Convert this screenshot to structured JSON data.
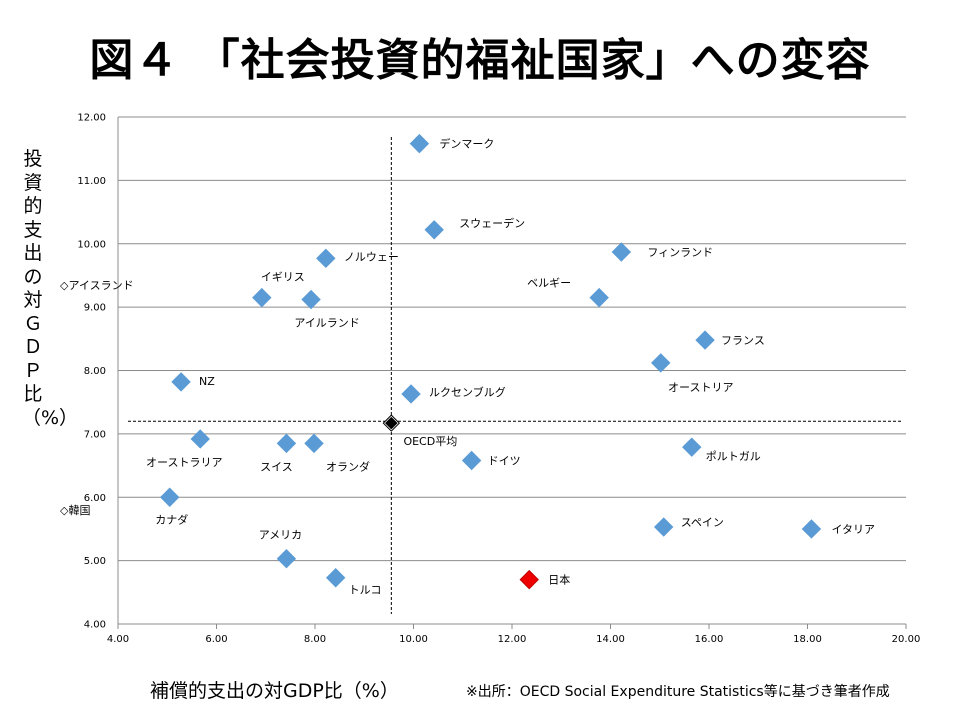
{
  "title": "図４ 「社会投資的福祉国家」への変容",
  "source": "※出所：OECD Social Expenditure Statistics等に基づき筆者作成",
  "chart_data": {
    "type": "scatter",
    "xlabel": "補償的支出の対GDP比（%）",
    "ylabel": "投資的支出の対ＧＤＰ比（%）",
    "xlim": [
      4.0,
      20.0
    ],
    "ylim": [
      4.0,
      12.0
    ],
    "x_ticks": [
      "4.00",
      "6.00",
      "8.00",
      "10.00",
      "12.00",
      "14.00",
      "16.00",
      "18.00",
      "20.00"
    ],
    "y_ticks": [
      "4.00",
      "5.00",
      "6.00",
      "7.00",
      "8.00",
      "9.00",
      "10.00",
      "11.00",
      "12.00"
    ],
    "grid": "horizontal",
    "colors": {
      "country": "#5b9bd5",
      "average": "#000000",
      "japan": "#ee0000"
    },
    "reference_lines": {
      "x": 9.55,
      "y": 7.2
    },
    "points": [
      {
        "label": "デンマーク",
        "x": 10.12,
        "y": 11.58,
        "style": "country"
      },
      {
        "label": "スウェーデン",
        "x": 10.42,
        "y": 10.22,
        "style": "country"
      },
      {
        "label": "フィンランド",
        "x": 14.22,
        "y": 9.87,
        "style": "country"
      },
      {
        "label": "ノルウェー",
        "x": 8.22,
        "y": 9.77,
        "style": "country"
      },
      {
        "label": "イギリス",
        "x": 6.92,
        "y": 9.15,
        "style": "country"
      },
      {
        "label": "アイルランド",
        "x": 7.92,
        "y": 9.12,
        "style": "country"
      },
      {
        "label": "ベルギー",
        "x": 13.77,
        "y": 9.15,
        "style": "country"
      },
      {
        "label": "フランス",
        "x": 15.92,
        "y": 8.48,
        "style": "country"
      },
      {
        "label": "オーストリア",
        "x": 15.02,
        "y": 8.12,
        "style": "country"
      },
      {
        "label": "NZ",
        "x": 5.28,
        "y": 7.82,
        "style": "country"
      },
      {
        "label": "ルクセンブルグ",
        "x": 9.95,
        "y": 7.63,
        "style": "country"
      },
      {
        "label": "OECD平均",
        "x": 9.55,
        "y": 7.17,
        "style": "average"
      },
      {
        "label": "オーストラリア",
        "x": 5.67,
        "y": 6.92,
        "style": "country"
      },
      {
        "label": "スイス",
        "x": 7.42,
        "y": 6.85,
        "style": "country"
      },
      {
        "label": "オランダ",
        "x": 7.98,
        "y": 6.85,
        "style": "country"
      },
      {
        "label": "ポルトガル",
        "x": 15.65,
        "y": 6.79,
        "style": "country"
      },
      {
        "label": "ドイツ",
        "x": 11.18,
        "y": 6.58,
        "style": "country"
      },
      {
        "label": "カナダ",
        "x": 5.05,
        "y": 6.0,
        "style": "country"
      },
      {
        "label": "スペイン",
        "x": 15.08,
        "y": 5.53,
        "style": "country"
      },
      {
        "label": "イタリア",
        "x": 18.08,
        "y": 5.5,
        "style": "country"
      },
      {
        "label": "アメリカ",
        "x": 7.42,
        "y": 5.03,
        "style": "country"
      },
      {
        "label": "トルコ",
        "x": 8.42,
        "y": 4.73,
        "style": "country"
      },
      {
        "label": "日本",
        "x": 12.35,
        "y": 4.7,
        "style": "japan"
      }
    ],
    "annotations": [
      {
        "text": "◇アイスランド",
        "y": 9.35
      },
      {
        "text": "◇韓国",
        "y": 5.8
      }
    ]
  }
}
